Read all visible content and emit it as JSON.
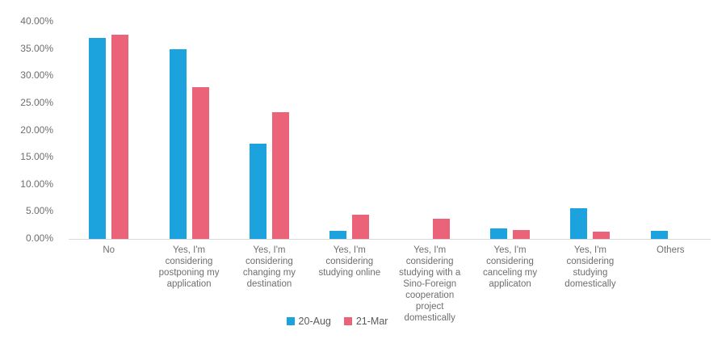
{
  "chart_data": {
    "type": "bar",
    "title": "",
    "xlabel": "",
    "ylabel": "",
    "ylim": [
      0,
      40
    ],
    "ytick_step": 5,
    "ytick_labels": [
      "0.00%",
      "5.00%",
      "10.00%",
      "15.00%",
      "20.00%",
      "25.00%",
      "30.00%",
      "35.00%",
      "40.00%"
    ],
    "grid": false,
    "legend_position": "bottom",
    "categories": [
      "No",
      "Yes, I'm considering postponing my application",
      "Yes, I'm considering changing my destination",
      "Yes, I'm considering studying online",
      "Yes, I'm considering studying with a Sino-Foreign cooperation project domestically",
      "Yes, I'm considering canceling my applicaton",
      "Yes, I'm considering studying domestically",
      "Others"
    ],
    "category_display_labels": [
      "No",
      "Yes, I'm\nconsidering\npostponing my\napplication",
      "Yes, I'm\nconsidering\nchanging my\ndestination",
      "Yes, I'm\nconsidering\nstudying online",
      "Yes, I'm\nconsidering\nstudying with a\nSino-Foreign\ncooperation\nproject\ndomestically",
      "Yes, I'm\nconsidering\ncanceling my\napplicaton",
      "Yes, I'm\nconsidering\nstudying\ndomestically",
      "Others"
    ],
    "series": [
      {
        "name": "20-Aug",
        "color": "#1CA2DC",
        "values": [
          37.0,
          35.0,
          17.5,
          1.5,
          0,
          1.9,
          5.6,
          1.5
        ]
      },
      {
        "name": "21-Mar",
        "color": "#EA6378",
        "values": [
          37.6,
          28.0,
          23.3,
          4.4,
          3.7,
          1.7,
          1.3,
          0
        ]
      }
    ]
  },
  "colors": {
    "axis_line": "#d9d9d9",
    "tick_text": "#6e6e6e",
    "legend_text": "#595959",
    "background": "#ffffff"
  }
}
